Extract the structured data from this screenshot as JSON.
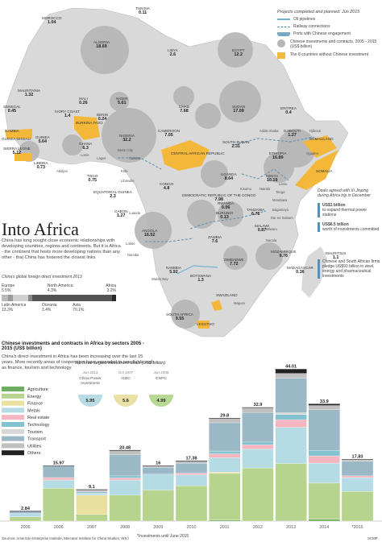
{
  "header": {
    "title": "Into Africa",
    "intro": "China has long sought close economic relationships with developing countries, regions and continents. But it is Africa - the continent that hosts more developing nations than any other - that China has fostered the closest links"
  },
  "legend": {
    "title": "Projects completed and planned: Jun 2015",
    "oil": "Oil pipelines",
    "rail": "Railway connections",
    "ports": "Ports with Chinese engagement",
    "invest": "Chinese investments and contracts, 2005 - 2015 (US$ billion)",
    "without": "The 8 countries without Chinese investment"
  },
  "map": {
    "countries": [
      {
        "name": "MOROCCO",
        "value": "1.04"
      },
      {
        "name": "ALGERIA",
        "value": "18.69"
      },
      {
        "name": "TUNISIA",
        "value": "0.11"
      },
      {
        "name": "LIBYA",
        "value": "2.6"
      },
      {
        "name": "EGYPT",
        "value": "12.2"
      },
      {
        "name": "MAURITANIA",
        "value": "1.32"
      },
      {
        "name": "MALI",
        "value": "0.26"
      },
      {
        "name": "NIGER",
        "value": "5.61"
      },
      {
        "name": "CHAD",
        "value": "7.68"
      },
      {
        "name": "SUDAN",
        "value": "17.09"
      },
      {
        "name": "ERITREA",
        "value": "0.4"
      },
      {
        "name": "SENEGAL",
        "value": "0.45"
      },
      {
        "name": "GAMBIA",
        "value": ""
      },
      {
        "name": "GUINEA-BISSAU",
        "value": ""
      },
      {
        "name": "GUINEA",
        "value": "5.64"
      },
      {
        "name": "IVORY COAST",
        "value": "1.4"
      },
      {
        "name": "BURKINA FASO",
        "value": ""
      },
      {
        "name": "BENIN",
        "value": "0.24"
      },
      {
        "name": "NIGERIA",
        "value": "32.2"
      },
      {
        "name": "SIERRA LEONE",
        "value": "5.12"
      },
      {
        "name": "LIBERIA",
        "value": "0.73"
      },
      {
        "name": "GHANA",
        "value": "6.3"
      },
      {
        "name": "TOGO",
        "value": "0.75"
      },
      {
        "name": "CAMEROON",
        "value": "7.05"
      },
      {
        "name": "CENTRAL AFRICAN REPUBLIC",
        "value": ""
      },
      {
        "name": "SOUTH SUDAN",
        "value": "2.31"
      },
      {
        "name": "ETHIOPIA",
        "value": "16.89"
      },
      {
        "name": "DJIBOUTI",
        "value": "1.27"
      },
      {
        "name": "SOMALILAND",
        "value": ""
      },
      {
        "name": "SOMALIA",
        "value": ""
      },
      {
        "name": "EQUATORIAL GUINEA",
        "value": "2.3"
      },
      {
        "name": "GABON",
        "value": "1.27"
      },
      {
        "name": "CONGO",
        "value": "4.8"
      },
      {
        "name": "UGANDA",
        "value": "8.64"
      },
      {
        "name": "KENYA",
        "value": "10.19"
      },
      {
        "name": "RWANDA",
        "value": "0.06"
      },
      {
        "name": "BURUNDI",
        "value": "0.13"
      },
      {
        "name": "DEMOCRATIC REPUBLIC OF THE CONGO",
        "value": "7.98"
      },
      {
        "name": "TANZANIA",
        "value": "6.76"
      },
      {
        "name": "ANGOLA",
        "value": "16.52"
      },
      {
        "name": "ZAMBIA",
        "value": "7.6"
      },
      {
        "name": "MALAWI",
        "value": "0.87"
      },
      {
        "name": "MOZAMBIQUE",
        "value": "9.76"
      },
      {
        "name": "ZIMBABWE",
        "value": "7.72"
      },
      {
        "name": "NAMIBIA",
        "value": "5.92"
      },
      {
        "name": "BOTSWANA",
        "value": "1.3"
      },
      {
        "name": "MADAGASCAR",
        "value": "0.36"
      },
      {
        "name": "MAURITIUS",
        "value": "1.1"
      },
      {
        "name": "SWAZILAND",
        "value": ""
      },
      {
        "name": "LESOTHO",
        "value": ""
      },
      {
        "name": "SOUTH AFRICA",
        "value": "9.55"
      }
    ],
    "cities": [
      "Addis Ababa",
      "Djibouti",
      "Ogaden",
      "Benin City",
      "Calabar",
      "Lome",
      "Lagos",
      "Abidjan",
      "Kribi",
      "Libreville",
      "Luanda",
      "Lobito",
      "Namibe",
      "Walvis Bay",
      "Mombasa",
      "Lamu",
      "Kisumu",
      "Nairobi",
      "Dar es Salaam",
      "Mtwara",
      "Nacala",
      "Maputo",
      "Bagamoyo",
      "Tanga"
    ],
    "deals": {
      "title": "Deals agreed with Xi Jinping during Africa trip in December",
      "items": [
        {
          "amount": "US$1 billion",
          "desc": "to expand thermal power stations"
        },
        {
          "amount": "US$6.5 billion",
          "desc": "worth of investments committed"
        },
        {
          "amount": "",
          "desc": "Chinese and South African firms pledge US$93 billion in steel, energy and pharmaceutical investments"
        }
      ]
    }
  },
  "fdi": {
    "title": "China's global foreign direct investment 2013",
    "regions": [
      {
        "name": "Europe",
        "value": "5.5%"
      },
      {
        "name": "North America",
        "value": "4.3%"
      },
      {
        "name": "Africa",
        "value": "3.2%"
      },
      {
        "name": "Latin America",
        "value": "13.3%"
      },
      {
        "name": "Oceania",
        "value": "3.4%"
      },
      {
        "name": "Asia",
        "value": "70.1%"
      }
    ]
  },
  "sector_section": {
    "title": "Chinese investments and contracts in Africa by sectors 2005 - 2015 (US$ billion)",
    "desc": "China's direct investment in Africa has been increasing over the last 15 years. More recently areas of cooperation have expanded to new fields such as finance, tourism and technology.",
    "top3_title": "Top three largest investment deals (US$ billion)",
    "top3": [
      {
        "date": "Jun 2013",
        "name": "China Power Investment",
        "value": "5.95",
        "color": "#b8dce5"
      },
      {
        "date": "Oct 2007",
        "name": "ICBC",
        "value": "5.6",
        "color": "#e8e0a4"
      },
      {
        "date": "Jun 2008",
        "name": "CNPC",
        "value": "4.99",
        "color": "#b8d891"
      }
    ],
    "footnote": "*Investments until June 2015"
  },
  "sectors": [
    {
      "name": "Agriculture",
      "color": "#6fae5e"
    },
    {
      "name": "Energy",
      "color": "#b6d48d"
    },
    {
      "name": "Finance",
      "color": "#e9df9e"
    },
    {
      "name": "Metals",
      "color": "#b5dce5"
    },
    {
      "name": "Real estate",
      "color": "#f5b6c1"
    },
    {
      "name": "Technology",
      "color": "#83c3cf"
    },
    {
      "name": "Tourism",
      "color": "#d6d6d6"
    },
    {
      "name": "Transport",
      "color": "#9bb8c6"
    },
    {
      "name": "Utilities",
      "color": "#c0c0c0"
    },
    {
      "name": "Others",
      "color": "#222222"
    }
  ],
  "chart_data": {
    "type": "bar",
    "stacked": true,
    "categories": [
      "2005",
      "2006",
      "2007",
      "2008",
      "2009",
      "2010",
      "2011",
      "2012",
      "2013",
      "2014",
      "*2015"
    ],
    "totals": [
      2.84,
      15.97,
      9.1,
      20.48,
      16,
      17.38,
      29.8,
      32.9,
      44.01,
      33.9,
      17.83
    ],
    "series": [
      {
        "name": "Agriculture",
        "values": [
          0,
          0,
          0,
          0,
          0,
          0,
          0.3,
          0,
          0.2,
          0.5,
          0
        ]
      },
      {
        "name": "Energy",
        "values": [
          1.2,
          9.5,
          1.9,
          7.5,
          9.0,
          10.2,
          13.5,
          15.4,
          16.5,
          10.5,
          8.6
        ]
      },
      {
        "name": "Finance",
        "values": [
          0,
          0,
          5.6,
          0,
          0,
          0,
          0.4,
          0,
          0,
          0,
          0
        ]
      },
      {
        "name": "Metals",
        "values": [
          1.0,
          2.4,
          0.6,
          4.4,
          4.6,
          3.2,
          4.2,
          5.5,
          10.5,
          5.8,
          4.0
        ]
      },
      {
        "name": "Real estate",
        "values": [
          0,
          0.7,
          0,
          0.6,
          0,
          0.5,
          1.1,
          1.2,
          2.2,
          2.1,
          0.5
        ]
      },
      {
        "name": "Technology",
        "values": [
          0,
          0,
          0,
          0.6,
          0,
          0,
          0.8,
          0.8,
          1.5,
          1.6,
          0
        ]
      },
      {
        "name": "Tourism",
        "values": [
          0,
          0,
          0,
          0,
          0,
          0,
          0,
          0,
          0.5,
          0,
          0
        ]
      },
      {
        "name": "Transport",
        "values": [
          0.64,
          3.37,
          0.4,
          6.18,
          2.0,
          2.88,
          8.2,
          8.6,
          10.0,
          11.8,
          4.23
        ]
      },
      {
        "name": "Utilities",
        "values": [
          0,
          0,
          0.6,
          1.2,
          0.4,
          0.6,
          1.3,
          1.4,
          1.4,
          1.2,
          0.5
        ]
      },
      {
        "name": "Others",
        "values": [
          0,
          0,
          0,
          0,
          0,
          0,
          0,
          0,
          1.21,
          0.4,
          0
        ]
      }
    ],
    "ylim": [
      0,
      46
    ]
  },
  "sources": "Sources: American Enterprise Institute, Mercator Institute for China Studies, WSJ",
  "credit": "SCMP"
}
